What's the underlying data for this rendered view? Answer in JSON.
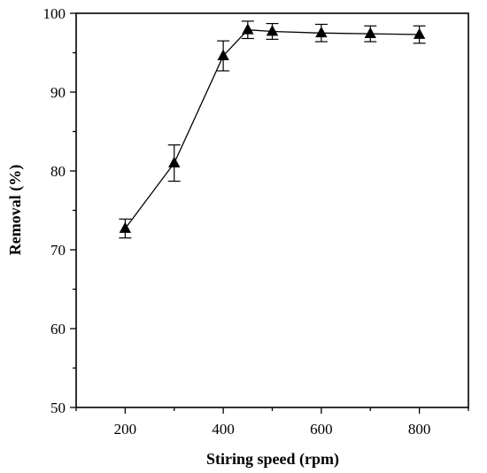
{
  "chart_data": {
    "type": "line",
    "xlabel": "Stiring speed (rpm)",
    "ylabel": "Removal (%)",
    "xlim": [
      100,
      900
    ],
    "ylim": [
      50,
      100
    ],
    "x_ticks": [
      200,
      400,
      600,
      800
    ],
    "y_ticks": [
      50,
      60,
      70,
      80,
      90,
      100
    ],
    "x_tick_labels": [
      "200",
      "400",
      "600",
      "800"
    ],
    "y_tick_labels": [
      "50",
      "60",
      "70",
      "80",
      "90",
      "100"
    ],
    "marker": "triangle",
    "grid": false,
    "series": [
      {
        "x": [
          200,
          300,
          400,
          450,
          500,
          600,
          700,
          800
        ],
        "values": [
          72.7,
          81.0,
          94.6,
          97.9,
          97.7,
          97.5,
          97.4,
          97.3
        ],
        "error": [
          1.2,
          2.3,
          1.9,
          1.1,
          1.0,
          1.1,
          1.0,
          1.1
        ]
      }
    ]
  }
}
